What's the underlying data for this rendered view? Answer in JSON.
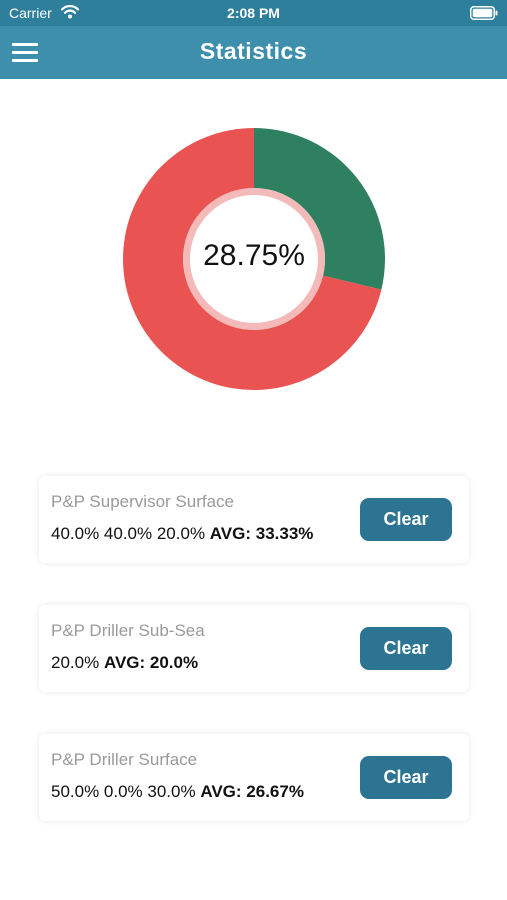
{
  "status_bar": {
    "carrier": "Carrier",
    "time": "2:08 PM"
  },
  "nav": {
    "title": "Statistics"
  },
  "chart_data": {
    "type": "pie",
    "center_label": "28.75%",
    "slices": [
      {
        "value": 28.75,
        "color": "#2f8060"
      },
      {
        "value": 71.25,
        "color": "#e95452"
      }
    ]
  },
  "cards": [
    {
      "title": "P&P Supervisor Surface",
      "values": "40.0% 40.0% 20.0% ",
      "avg": "AVG: 33.33%",
      "button": "Clear"
    },
    {
      "title": "P&P Driller Sub-Sea",
      "values": "20.0% ",
      "avg": "AVG: 20.0%",
      "button": "Clear"
    },
    {
      "title": "P&P Driller Surface",
      "values": "50.0% 0.0% 30.0% ",
      "avg": "AVG: 26.67%",
      "button": "Clear"
    }
  ],
  "colors": {
    "status_bar": "#2e7f9b",
    "nav_bar": "#3d8fac",
    "button": "#2d7492",
    "slice_green": "#2f8060",
    "slice_red": "#e95452",
    "inner_ring": "#f0a3a1"
  },
  "icons": {
    "wifi": "wifi-icon",
    "battery": "battery-icon",
    "menu": "hamburger-menu-icon"
  }
}
